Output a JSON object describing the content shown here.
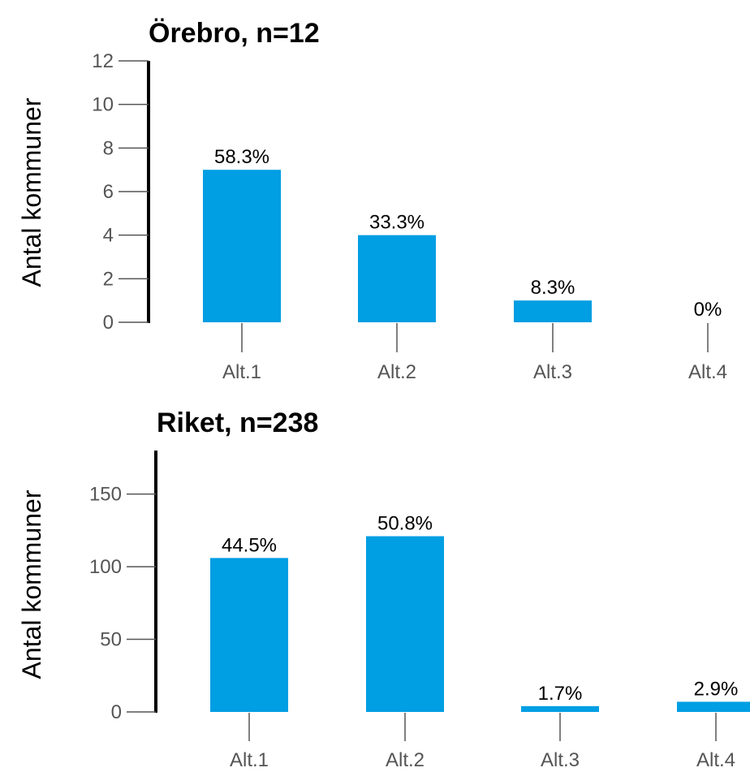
{
  "chart_data": [
    {
      "type": "bar",
      "title": "Örebro, n=12",
      "ylabel": "Antal kommuner",
      "xlabel": "",
      "categories": [
        "Alt.1",
        "Alt.2",
        "Alt.3",
        "Alt.4"
      ],
      "values": [
        7,
        4,
        1,
        0
      ],
      "data_labels": [
        "58.3%",
        "33.3%",
        "8.3%",
        "0%"
      ],
      "ylim": [
        0,
        12
      ],
      "yticks": [
        0,
        2,
        4,
        6,
        8,
        10,
        12
      ],
      "ytick_labels": [
        "0",
        "2",
        "4",
        "6",
        "8",
        "10",
        "12"
      ],
      "bar_color": "#009ee3",
      "grid": false
    },
    {
      "type": "bar",
      "title": "Riket, n=238",
      "ylabel": "Antal kommuner",
      "xlabel": "",
      "categories": [
        "Alt.1",
        "Alt.2",
        "Alt.3",
        "Alt.4"
      ],
      "values": [
        106,
        121,
        4,
        7
      ],
      "data_labels": [
        "44.5%",
        "50.8%",
        "1.7%",
        "2.9%"
      ],
      "ylim": [
        0,
        180
      ],
      "yticks": [
        0,
        50,
        100,
        150
      ],
      "ytick_labels": [
        "0",
        "50",
        "100",
        "150"
      ],
      "bar_color": "#009ee3",
      "grid": false
    }
  ]
}
